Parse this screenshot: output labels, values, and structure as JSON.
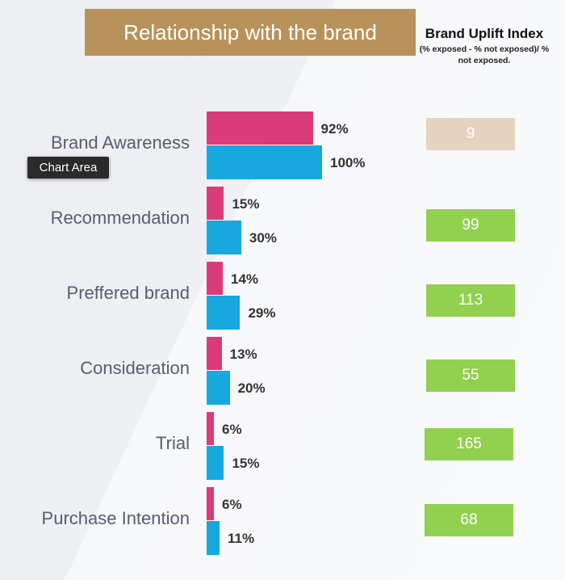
{
  "header": {
    "title": "Relationship with the brand",
    "uplift_title": "Brand Uplift Index",
    "uplift_subtitle": "(% exposed - % not exposed)/ % not exposed."
  },
  "tooltip": {
    "text": "Chart Area"
  },
  "colors": {
    "exposed": "#db3c78",
    "not_exposed": "#16a8df",
    "banner": "#b8925a",
    "index_positive": "#92d050",
    "index_low": "#e6d3bf"
  },
  "chart_data": {
    "type": "bar",
    "orientation": "horizontal",
    "title": "Relationship with the brand",
    "categories": [
      "Brand Awareness",
      "Recommendation",
      "Preffered brand",
      "Consideration",
      "Trial",
      "Purchase Intention"
    ],
    "series": [
      {
        "values": [
          92,
          15,
          14,
          13,
          6,
          6
        ],
        "labels": [
          "92%",
          "15%",
          "14%",
          "13%",
          "6%",
          "6%"
        ]
      },
      {
        "values": [
          100,
          30,
          29,
          20,
          15,
          11
        ],
        "labels": [
          "100%",
          "30%",
          "29%",
          "20%",
          "15%",
          "11%"
        ]
      }
    ],
    "xlim": [
      0,
      100
    ],
    "grid": false,
    "legend": "none",
    "uplift_index": {
      "title": "Brand Uplift Index",
      "values": [
        "9",
        "99",
        "113",
        "55",
        "165",
        "68"
      ]
    }
  }
}
